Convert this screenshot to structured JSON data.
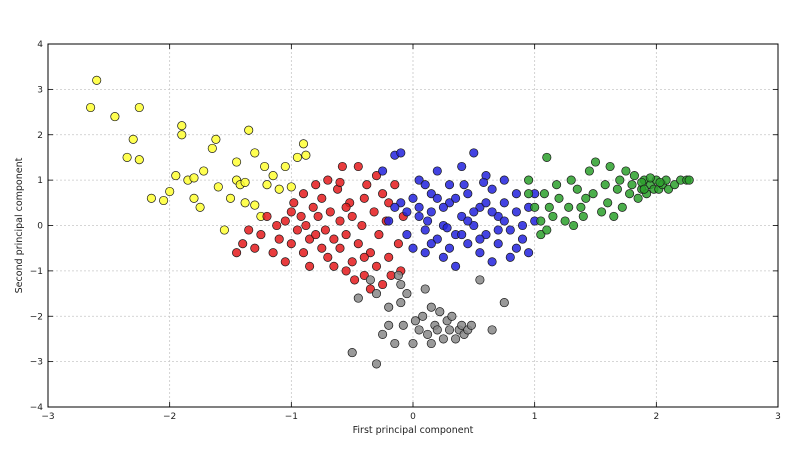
{
  "chart_data": {
    "type": "scatter",
    "title": "",
    "xlabel": "First principal component",
    "ylabel": "Second principal component",
    "xlim": [
      -3,
      3
    ],
    "ylim": [
      -4,
      4
    ],
    "xticks": [
      -3,
      -2,
      -1,
      0,
      1,
      2,
      3
    ],
    "yticks": [
      -4,
      -3,
      -2,
      -1,
      0,
      1,
      2,
      3,
      4
    ],
    "grid": true,
    "legend": "none",
    "series": [
      {
        "color": "#ffff33",
        "points": [
          [
            -2.6,
            3.2
          ],
          [
            -2.65,
            2.6
          ],
          [
            -2.45,
            2.4
          ],
          [
            -2.25,
            2.6
          ],
          [
            -2.3,
            1.9
          ],
          [
            -2.35,
            1.5
          ],
          [
            -2.25,
            1.45
          ],
          [
            -2.15,
            0.6
          ],
          [
            -2.05,
            0.55
          ],
          [
            -2.0,
            0.75
          ],
          [
            -1.95,
            1.1
          ],
          [
            -1.9,
            2.2
          ],
          [
            -1.9,
            2.0
          ],
          [
            -1.85,
            1.0
          ],
          [
            -1.8,
            1.05
          ],
          [
            -1.8,
            0.6
          ],
          [
            -1.75,
            0.4
          ],
          [
            -1.72,
            1.2
          ],
          [
            -1.65,
            1.7
          ],
          [
            -1.62,
            1.9
          ],
          [
            -1.6,
            0.85
          ],
          [
            -1.55,
            -0.1
          ],
          [
            -1.5,
            0.6
          ],
          [
            -1.45,
            1.4
          ],
          [
            -1.45,
            1.0
          ],
          [
            -1.42,
            0.9
          ],
          [
            -1.38,
            0.95
          ],
          [
            -1.38,
            0.5
          ],
          [
            -1.35,
            2.1
          ],
          [
            -1.3,
            1.6
          ],
          [
            -1.3,
            0.45
          ],
          [
            -1.25,
            0.2
          ],
          [
            -1.22,
            1.3
          ],
          [
            -1.2,
            0.9
          ],
          [
            -1.15,
            1.1
          ],
          [
            -1.1,
            0.8
          ],
          [
            -1.05,
            1.3
          ],
          [
            -1.0,
            0.85
          ],
          [
            -0.95,
            1.5
          ],
          [
            -0.9,
            1.8
          ],
          [
            -0.88,
            1.55
          ]
        ]
      },
      {
        "color": "#e41a1c",
        "points": [
          [
            -1.45,
            -0.6
          ],
          [
            -1.4,
            -0.4
          ],
          [
            -1.35,
            -0.1
          ],
          [
            -1.3,
            -0.5
          ],
          [
            -1.25,
            -0.2
          ],
          [
            -1.2,
            0.2
          ],
          [
            -1.15,
            -0.6
          ],
          [
            -1.12,
            0.0
          ],
          [
            -1.1,
            -0.3
          ],
          [
            -1.05,
            0.1
          ],
          [
            -1.05,
            -0.8
          ],
          [
            -1.0,
            0.3
          ],
          [
            -1.0,
            -0.4
          ],
          [
            -0.98,
            0.5
          ],
          [
            -0.95,
            -0.1
          ],
          [
            -0.92,
            0.2
          ],
          [
            -0.9,
            -0.6
          ],
          [
            -0.9,
            0.7
          ],
          [
            -0.88,
            0.0
          ],
          [
            -0.85,
            -0.3
          ],
          [
            -0.85,
            -0.9
          ],
          [
            -0.82,
            0.4
          ],
          [
            -0.8,
            0.9
          ],
          [
            -0.8,
            -0.2
          ],
          [
            -0.78,
            0.2
          ],
          [
            -0.75,
            -0.5
          ],
          [
            -0.75,
            0.6
          ],
          [
            -0.72,
            -0.1
          ],
          [
            -0.7,
            -0.7
          ],
          [
            -0.7,
            1.0
          ],
          [
            -0.68,
            0.3
          ],
          [
            -0.65,
            -0.3
          ],
          [
            -0.65,
            -0.9
          ],
          [
            -0.62,
            0.8
          ],
          [
            -0.6,
            0.1
          ],
          [
            -0.6,
            -0.5
          ],
          [
            -0.58,
            1.3
          ],
          [
            -0.55,
            -0.2
          ],
          [
            -0.55,
            -1.0
          ],
          [
            -0.52,
            0.5
          ],
          [
            -0.5,
            -0.8
          ],
          [
            -0.5,
            0.2
          ],
          [
            -0.48,
            -1.2
          ],
          [
            -0.45,
            1.3
          ],
          [
            -0.45,
            -0.4
          ],
          [
            -0.42,
            0.0
          ],
          [
            -0.4,
            0.6
          ],
          [
            -0.4,
            -1.1
          ],
          [
            -0.38,
            0.9
          ],
          [
            -0.35,
            -0.6
          ],
          [
            -0.35,
            -1.4
          ],
          [
            -0.32,
            0.3
          ],
          [
            -0.3,
            1.1
          ],
          [
            -0.3,
            -0.9
          ],
          [
            -0.28,
            -0.2
          ],
          [
            -0.25,
            0.7
          ],
          [
            -0.25,
            -1.3
          ],
          [
            -0.22,
            0.1
          ],
          [
            -0.2,
            -0.7
          ],
          [
            -0.2,
            0.5
          ],
          [
            -0.18,
            -1.1
          ],
          [
            -0.15,
            0.9
          ],
          [
            -0.12,
            -0.4
          ],
          [
            -0.1,
            -1.0
          ],
          [
            -0.08,
            0.2
          ],
          [
            -0.6,
            0.95
          ],
          [
            -0.4,
            -0.7
          ],
          [
            -0.55,
            0.4
          ]
        ]
      },
      {
        "color": "#2222dd",
        "points": [
          [
            -0.25,
            1.2
          ],
          [
            -0.15,
            1.55
          ],
          [
            -0.1,
            1.6
          ],
          [
            -0.2,
            0.1
          ],
          [
            -0.1,
            0.5
          ],
          [
            -0.05,
            -0.2
          ],
          [
            0.0,
            0.6
          ],
          [
            0.0,
            -0.5
          ],
          [
            0.05,
            0.2
          ],
          [
            0.05,
            1.0
          ],
          [
            0.1,
            -0.1
          ],
          [
            0.1,
            -0.6
          ],
          [
            0.15,
            0.7
          ],
          [
            0.15,
            0.3
          ],
          [
            0.2,
            -0.3
          ],
          [
            0.2,
            1.2
          ],
          [
            0.25,
            0.0
          ],
          [
            0.25,
            -0.7
          ],
          [
            0.3,
            0.5
          ],
          [
            0.3,
            0.9
          ],
          [
            0.35,
            -0.2
          ],
          [
            0.35,
            -0.9
          ],
          [
            0.4,
            0.2
          ],
          [
            0.4,
            1.3
          ],
          [
            0.45,
            -0.4
          ],
          [
            0.45,
            0.7
          ],
          [
            0.5,
            1.6
          ],
          [
            0.5,
            0.0
          ],
          [
            0.55,
            -0.6
          ],
          [
            0.55,
            0.4
          ],
          [
            0.6,
            1.1
          ],
          [
            0.6,
            -0.2
          ],
          [
            0.65,
            0.8
          ],
          [
            0.65,
            -0.8
          ],
          [
            0.7,
            0.2
          ],
          [
            0.7,
            -0.4
          ],
          [
            0.75,
            1.0
          ],
          [
            0.75,
            0.5
          ],
          [
            0.8,
            -0.1
          ],
          [
            0.8,
            -0.7
          ],
          [
            0.85,
            0.3
          ],
          [
            0.85,
            0.7
          ],
          [
            0.9,
            0.0
          ],
          [
            0.9,
            -0.3
          ],
          [
            0.95,
            0.4
          ],
          [
            0.95,
            -0.6
          ],
          [
            1.0,
            0.1
          ],
          [
            1.0,
            0.7
          ],
          [
            0.2,
            0.6
          ],
          [
            0.3,
            -0.5
          ],
          [
            0.5,
            0.3
          ],
          [
            0.7,
            -0.1
          ],
          [
            0.1,
            0.9
          ],
          [
            0.4,
            -0.2
          ],
          [
            0.6,
            0.5
          ],
          [
            -0.05,
            0.3
          ],
          [
            0.25,
            0.4
          ],
          [
            0.45,
            0.1
          ],
          [
            0.15,
            -0.4
          ],
          [
            0.35,
            0.6
          ],
          [
            0.55,
            -0.3
          ],
          [
            0.75,
            0.1
          ],
          [
            0.05,
            0.4
          ],
          [
            0.65,
            0.3
          ],
          [
            0.85,
            -0.5
          ],
          [
            -0.15,
            0.4
          ],
          [
            0.12,
            0.1
          ],
          [
            0.42,
            0.9
          ],
          [
            0.28,
            -0.05
          ],
          [
            0.58,
            0.95
          ]
        ]
      },
      {
        "color": "#2ca02c",
        "points": [
          [
            0.95,
            1.0
          ],
          [
            0.95,
            0.7
          ],
          [
            1.0,
            0.4
          ],
          [
            1.05,
            0.1
          ],
          [
            1.05,
            -0.2
          ],
          [
            1.08,
            0.7
          ],
          [
            1.1,
            1.5
          ],
          [
            1.1,
            -0.1
          ],
          [
            1.12,
            0.4
          ],
          [
            1.15,
            0.2
          ],
          [
            1.18,
            0.9
          ],
          [
            1.2,
            0.6
          ],
          [
            1.25,
            0.1
          ],
          [
            1.28,
            0.4
          ],
          [
            1.3,
            1.0
          ],
          [
            1.32,
            0.0
          ],
          [
            1.35,
            0.8
          ],
          [
            1.38,
            0.4
          ],
          [
            1.4,
            0.2
          ],
          [
            1.42,
            0.6
          ],
          [
            1.45,
            1.2
          ],
          [
            1.48,
            0.7
          ],
          [
            1.5,
            1.4
          ],
          [
            1.55,
            0.3
          ],
          [
            1.58,
            0.9
          ],
          [
            1.6,
            0.5
          ],
          [
            1.62,
            1.3
          ],
          [
            1.65,
            0.2
          ],
          [
            1.68,
            0.8
          ],
          [
            1.7,
            1.0
          ],
          [
            1.72,
            0.4
          ],
          [
            1.75,
            1.2
          ],
          [
            1.78,
            0.7
          ],
          [
            1.8,
            0.9
          ],
          [
            1.82,
            1.1
          ],
          [
            1.85,
            0.6
          ],
          [
            1.88,
            0.8
          ],
          [
            1.9,
            1.0
          ],
          [
            1.92,
            0.7
          ],
          [
            1.95,
            0.9
          ],
          [
            1.98,
            0.8
          ],
          [
            2.0,
            1.0
          ],
          [
            2.02,
            0.8
          ],
          [
            2.05,
            0.9
          ],
          [
            2.08,
            1.0
          ],
          [
            2.1,
            0.8
          ],
          [
            2.15,
            0.9
          ],
          [
            2.2,
            1.0
          ],
          [
            2.25,
            1.0
          ],
          [
            2.27,
            1.0
          ],
          [
            1.95,
            1.05
          ],
          [
            1.88,
            0.95
          ],
          [
            2.03,
            0.95
          ],
          [
            1.9,
            0.8
          ]
        ]
      },
      {
        "color": "#888888",
        "points": [
          [
            -0.5,
            -2.8
          ],
          [
            -0.3,
            -3.05
          ],
          [
            -0.45,
            -1.6
          ],
          [
            -0.35,
            -1.2
          ],
          [
            -0.3,
            -1.5
          ],
          [
            -0.25,
            -2.4
          ],
          [
            -0.2,
            -1.8
          ],
          [
            -0.15,
            -2.6
          ],
          [
            -0.12,
            -1.1
          ],
          [
            -0.1,
            -1.7
          ],
          [
            -0.08,
            -2.2
          ],
          [
            -0.05,
            -1.5
          ],
          [
            0.0,
            -2.6
          ],
          [
            0.02,
            -2.1
          ],
          [
            0.05,
            -2.3
          ],
          [
            0.08,
            -2.0
          ],
          [
            0.1,
            -1.4
          ],
          [
            0.12,
            -2.4
          ],
          [
            0.15,
            -2.6
          ],
          [
            0.18,
            -2.2
          ],
          [
            0.2,
            -2.3
          ],
          [
            0.22,
            -1.9
          ],
          [
            0.25,
            -2.5
          ],
          [
            0.28,
            -2.1
          ],
          [
            0.3,
            -2.3
          ],
          [
            0.32,
            -2.0
          ],
          [
            0.35,
            -2.5
          ],
          [
            0.38,
            -2.3
          ],
          [
            0.4,
            -2.2
          ],
          [
            0.42,
            -2.4
          ],
          [
            0.45,
            -2.3
          ],
          [
            0.48,
            -2.2
          ],
          [
            0.55,
            -1.2
          ],
          [
            0.65,
            -2.3
          ],
          [
            0.75,
            -1.7
          ],
          [
            -0.2,
            -2.2
          ],
          [
            -0.1,
            -1.3
          ],
          [
            0.15,
            -1.8
          ]
        ]
      }
    ]
  }
}
